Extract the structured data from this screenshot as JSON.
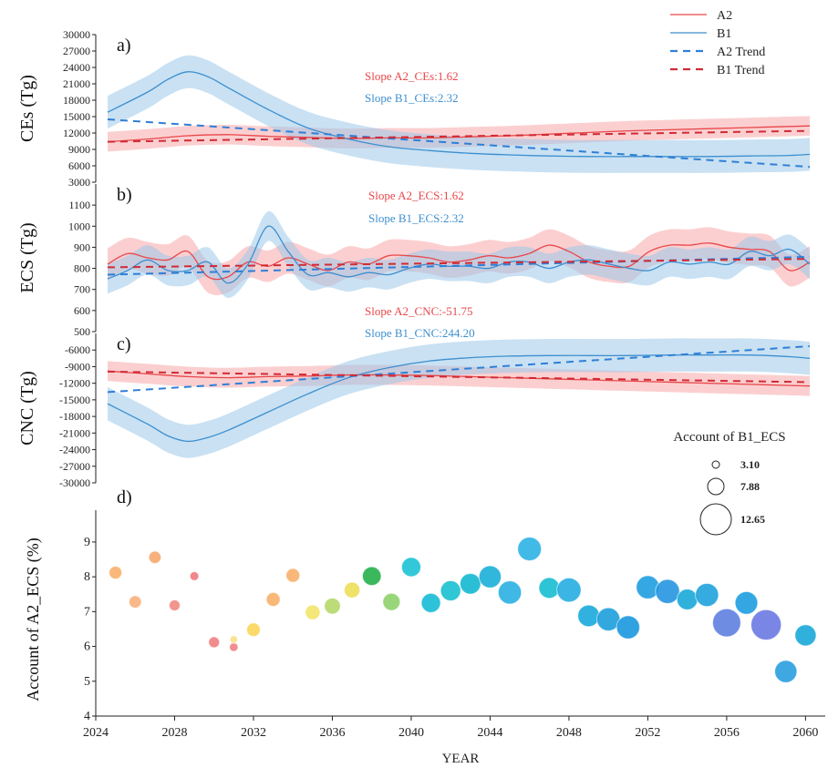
{
  "colors": {
    "a2": "#e8474a",
    "a2_band": "#f7a8aa",
    "b1": "#3d8fcf",
    "b1_band": "#9cc8ea",
    "a2_trend": "#2f7fd6",
    "b1_trend": "#d02b35"
  },
  "legend": {
    "items": [
      {
        "label": "A2",
        "style": "solid",
        "color": "#e8474a"
      },
      {
        "label": "B1",
        "style": "solid",
        "color": "#3d8fcf"
      },
      {
        "label": "A2 Trend",
        "style": "dashed",
        "color": "#2f7fd6"
      },
      {
        "label": "B1 Trend",
        "style": "dashed",
        "color": "#d02b35"
      }
    ]
  },
  "chart_data": [
    {
      "type": "line",
      "panel": "a)",
      "ylabel": "CEs (Tg)",
      "ylim": [
        3000,
        30000
      ],
      "yticks": [
        3000,
        6000,
        9000,
        12000,
        15000,
        18000,
        21000,
        24000,
        27000,
        30000
      ],
      "xlim": [
        2024,
        2060
      ],
      "slope_labels": [
        {
          "text": "Slope A2_CEs:1.62",
          "color": "#e8474a"
        },
        {
          "text": "Slope B1_CEs:2.32",
          "color": "#3d8fcf"
        }
      ],
      "series": [
        {
          "name": "A2",
          "band": 1800,
          "x": [
            2025,
            2027,
            2029,
            2031,
            2033,
            2035,
            2037,
            2039,
            2041,
            2043,
            2045,
            2047,
            2049,
            2051,
            2053,
            2055,
            2057,
            2059,
            2060
          ],
          "y": [
            10400,
            10900,
            11500,
            11700,
            11400,
            11200,
            11000,
            11100,
            11100,
            11300,
            11500,
            11800,
            12100,
            12400,
            12600,
            12800,
            13000,
            13200,
            13300
          ]
        },
        {
          "name": "B1",
          "band": 3000,
          "x": [
            2025,
            2027,
            2028,
            2029,
            2030,
            2031,
            2033,
            2035,
            2037,
            2039,
            2041,
            2043,
            2045,
            2047,
            2049,
            2051,
            2053,
            2055,
            2057,
            2059,
            2060
          ],
          "y": [
            15800,
            19500,
            21800,
            23200,
            22300,
            20300,
            16300,
            12900,
            10900,
            9500,
            8800,
            8300,
            8000,
            7800,
            7700,
            7700,
            7700,
            7700,
            7800,
            7900,
            8100
          ]
        },
        {
          "name": "A2 Trend",
          "dashed": true,
          "x": [
            2025,
            2060
          ],
          "y": [
            14500,
            5800
          ]
        },
        {
          "name": "B1 Trend",
          "dashed": true,
          "x": [
            2025,
            2060
          ],
          "y": [
            10400,
            12400
          ]
        }
      ]
    },
    {
      "type": "line",
      "panel": "b)",
      "ylabel": "ECS (Tg)",
      "ylim": [
        500,
        1200
      ],
      "yticks": [
        500,
        600,
        700,
        800,
        900,
        1000,
        1100
      ],
      "xlim": [
        2024,
        2060
      ],
      "slope_labels": [
        {
          "text": "Slope A2_ECS:1.62",
          "color": "#e8474a"
        },
        {
          "text": "Slope B1_ECS:2.32",
          "color": "#3d8fcf"
        }
      ],
      "series": [
        {
          "name": "A2",
          "band": 75,
          "x": [
            2025,
            2026,
            2027,
            2028,
            2029,
            2030,
            2031,
            2032,
            2033,
            2034,
            2035,
            2036,
            2037,
            2038,
            2039,
            2040,
            2041,
            2042,
            2043,
            2044,
            2045,
            2046,
            2047,
            2048,
            2049,
            2050,
            2051,
            2052,
            2053,
            2054,
            2055,
            2056,
            2057,
            2058,
            2059,
            2060
          ],
          "y": [
            820,
            870,
            850,
            840,
            880,
            760,
            760,
            830,
            810,
            850,
            820,
            790,
            830,
            820,
            860,
            860,
            850,
            830,
            840,
            860,
            850,
            870,
            910,
            880,
            830,
            810,
            810,
            880,
            910,
            910,
            920,
            900,
            890,
            880,
            790,
            830
          ]
        },
        {
          "name": "B1",
          "band": 70,
          "x": [
            2025,
            2026,
            2027,
            2028,
            2029,
            2030,
            2031,
            2032,
            2033,
            2034,
            2035,
            2036,
            2037,
            2038,
            2039,
            2040,
            2041,
            2042,
            2043,
            2044,
            2045,
            2046,
            2047,
            2048,
            2049,
            2050,
            2051,
            2052,
            2053,
            2054,
            2055,
            2056,
            2057,
            2058,
            2059,
            2060
          ],
          "y": [
            750,
            790,
            840,
            790,
            790,
            830,
            730,
            820,
            1000,
            880,
            770,
            780,
            760,
            780,
            770,
            800,
            820,
            810,
            810,
            800,
            830,
            830,
            800,
            830,
            840,
            820,
            800,
            790,
            830,
            820,
            830,
            820,
            880,
            860,
            890,
            820
          ]
        },
        {
          "name": "A2 Trend",
          "dashed": true,
          "x": [
            2025,
            2060
          ],
          "y": [
            770,
            855
          ]
        },
        {
          "name": "B1 Trend",
          "dashed": true,
          "x": [
            2025,
            2060
          ],
          "y": [
            805,
            845
          ]
        }
      ]
    },
    {
      "type": "line",
      "panel": "c)",
      "ylabel": "CNC (Tg)",
      "ylim": [
        -30000,
        -3000
      ],
      "yticks": [
        -30000,
        -27000,
        -24000,
        -21000,
        -18000,
        -15000,
        -12000,
        -9000,
        -6000
      ],
      "xlim": [
        2024,
        2060
      ],
      "slope_labels": [
        {
          "text": "Slope A2_CNC:-51.75",
          "color": "#e8474a"
        },
        {
          "text": "Slope B1_CNC:244.20",
          "color": "#3d8fcf"
        }
      ],
      "series": [
        {
          "name": "A2",
          "band": 1800,
          "x": [
            2025,
            2027,
            2029,
            2031,
            2033,
            2035,
            2037,
            2039,
            2041,
            2043,
            2045,
            2047,
            2049,
            2051,
            2053,
            2055,
            2057,
            2059,
            2060
          ],
          "y": [
            -9800,
            -10300,
            -10800,
            -11000,
            -10800,
            -10700,
            -10500,
            -10500,
            -10600,
            -10800,
            -11000,
            -11200,
            -11400,
            -11600,
            -11800,
            -12000,
            -12200,
            -12400,
            -12500
          ]
        },
        {
          "name": "B1",
          "band": 3000,
          "x": [
            2025,
            2027,
            2028,
            2029,
            2030,
            2031,
            2033,
            2035,
            2037,
            2039,
            2041,
            2043,
            2045,
            2047,
            2049,
            2051,
            2053,
            2055,
            2057,
            2059,
            2060
          ],
          "y": [
            -15700,
            -19400,
            -21500,
            -22500,
            -21800,
            -20500,
            -17200,
            -13900,
            -11000,
            -9200,
            -8000,
            -7400,
            -7100,
            -7000,
            -7000,
            -7000,
            -6900,
            -6900,
            -6900,
            -7200,
            -7500
          ]
        },
        {
          "name": "A2 Trend",
          "dashed": true,
          "x": [
            2025,
            2060
          ],
          "y": [
            -13600,
            -5300
          ]
        },
        {
          "name": "B1 Trend",
          "dashed": true,
          "x": [
            2025,
            2060
          ],
          "y": [
            -9900,
            -11800
          ]
        }
      ]
    },
    {
      "type": "scatter",
      "panel": "d)",
      "xlabel": "YEAR",
      "ylabel": "Account of  A2_ECS (%)",
      "xlim": [
        2024,
        2061
      ],
      "xticks": [
        2024,
        2028,
        2032,
        2036,
        2040,
        2044,
        2048,
        2052,
        2056,
        2060
      ],
      "ylim": [
        4,
        9.6
      ],
      "yticks": [
        4,
        5,
        6,
        7,
        8,
        9
      ],
      "size_legend": {
        "title": "Account of  B1_ECS",
        "entries": [
          3.1,
          7.88,
          12.65
        ]
      },
      "points": [
        {
          "x": 2025,
          "y": 8.12,
          "size": 5.2,
          "color": "#f8b06c"
        },
        {
          "x": 2026,
          "y": 7.28,
          "size": 5.0,
          "color": "#f8b07a"
        },
        {
          "x": 2027,
          "y": 8.56,
          "size": 5.0,
          "color": "#f6a86e"
        },
        {
          "x": 2028,
          "y": 7.18,
          "size": 4.4,
          "color": "#ef8a82"
        },
        {
          "x": 2029,
          "y": 8.02,
          "size": 3.6,
          "color": "#ee7a80"
        },
        {
          "x": 2030,
          "y": 6.12,
          "size": 4.4,
          "color": "#ef7f80"
        },
        {
          "x": 2031,
          "y": 5.98,
          "size": 3.5,
          "color": "#ef8284"
        },
        {
          "x": 2031,
          "y": 6.2,
          "size": 3.1,
          "color": "#f9e08a"
        },
        {
          "x": 2032,
          "y": 6.48,
          "size": 5.5,
          "color": "#fbd55a"
        },
        {
          "x": 2033,
          "y": 7.35,
          "size": 5.6,
          "color": "#f7b068"
        },
        {
          "x": 2034,
          "y": 8.04,
          "size": 5.6,
          "color": "#f8b06c"
        },
        {
          "x": 2035,
          "y": 6.98,
          "size": 6.0,
          "color": "#f3e46a"
        },
        {
          "x": 2036,
          "y": 7.16,
          "size": 6.5,
          "color": "#b5d86a"
        },
        {
          "x": 2037,
          "y": 7.62,
          "size": 6.4,
          "color": "#eede5a"
        },
        {
          "x": 2038,
          "y": 8.02,
          "size": 7.6,
          "color": "#26b04a"
        },
        {
          "x": 2039,
          "y": 7.28,
          "size": 7.0,
          "color": "#8ed16a"
        },
        {
          "x": 2040,
          "y": 8.28,
          "size": 7.8,
          "color": "#1cc2d6"
        },
        {
          "x": 2041,
          "y": 7.25,
          "size": 7.8,
          "color": "#16bbd6"
        },
        {
          "x": 2042,
          "y": 7.6,
          "size": 8.2,
          "color": "#18c0d0"
        },
        {
          "x": 2043,
          "y": 7.8,
          "size": 8.4,
          "color": "#14b8d0"
        },
        {
          "x": 2044,
          "y": 8.0,
          "size": 9.0,
          "color": "#1cafd8"
        },
        {
          "x": 2045,
          "y": 7.55,
          "size": 9.4,
          "color": "#2ab0e2"
        },
        {
          "x": 2046,
          "y": 8.8,
          "size": 9.6,
          "color": "#2cb2e4"
        },
        {
          "x": 2047,
          "y": 7.68,
          "size": 8.4,
          "color": "#18bcd2"
        },
        {
          "x": 2048,
          "y": 7.62,
          "size": 9.8,
          "color": "#26ade0"
        },
        {
          "x": 2049,
          "y": 6.88,
          "size": 8.8,
          "color": "#1aa8dc"
        },
        {
          "x": 2050,
          "y": 6.78,
          "size": 9.4,
          "color": "#1c9fdc"
        },
        {
          "x": 2051,
          "y": 6.55,
          "size": 9.4,
          "color": "#1a98de"
        },
        {
          "x": 2052,
          "y": 7.7,
          "size": 9.4,
          "color": "#1f9fe0"
        },
        {
          "x": 2053,
          "y": 7.58,
          "size": 9.8,
          "color": "#2696e0"
        },
        {
          "x": 2054,
          "y": 7.35,
          "size": 8.4,
          "color": "#1aa9d8"
        },
        {
          "x": 2055,
          "y": 7.48,
          "size": 9.4,
          "color": "#1fa2dc"
        },
        {
          "x": 2056,
          "y": 6.68,
          "size": 11.4,
          "color": "#5f7fe0"
        },
        {
          "x": 2057,
          "y": 7.25,
          "size": 9.2,
          "color": "#1e9de0"
        },
        {
          "x": 2058,
          "y": 6.62,
          "size": 12.3,
          "color": "#6a79e2"
        },
        {
          "x": 2059,
          "y": 5.28,
          "size": 9.0,
          "color": "#2a9ee0"
        },
        {
          "x": 2060,
          "y": 6.32,
          "size": 8.6,
          "color": "#1aa8d8"
        }
      ]
    }
  ]
}
